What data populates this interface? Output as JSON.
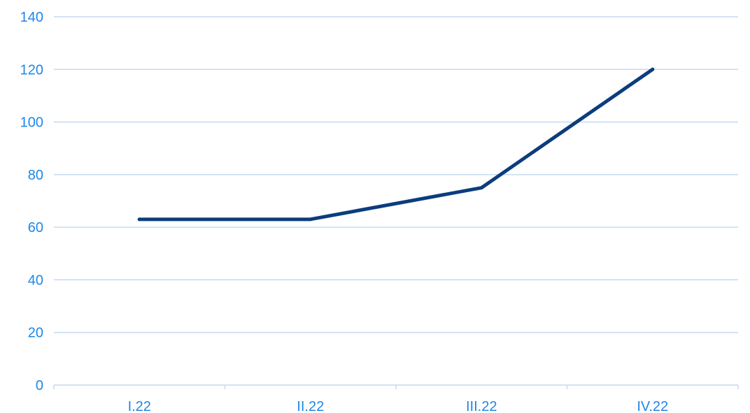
{
  "chart_data": {
    "type": "line",
    "categories": [
      "I.22",
      "II.22",
      "III.22",
      "IV.22"
    ],
    "series": [
      {
        "values": [
          63,
          63,
          75,
          120
        ]
      }
    ],
    "title": "",
    "xlabel": "",
    "ylabel": "",
    "ylim": [
      0,
      140
    ],
    "yticks": [
      0,
      20,
      40,
      60,
      80,
      100,
      120,
      140
    ],
    "grid": true,
    "legend": "none"
  },
  "colors": {
    "line": "#0b3d7e",
    "tick_label": "#1e88e5",
    "grid": "#c6d9f1"
  }
}
